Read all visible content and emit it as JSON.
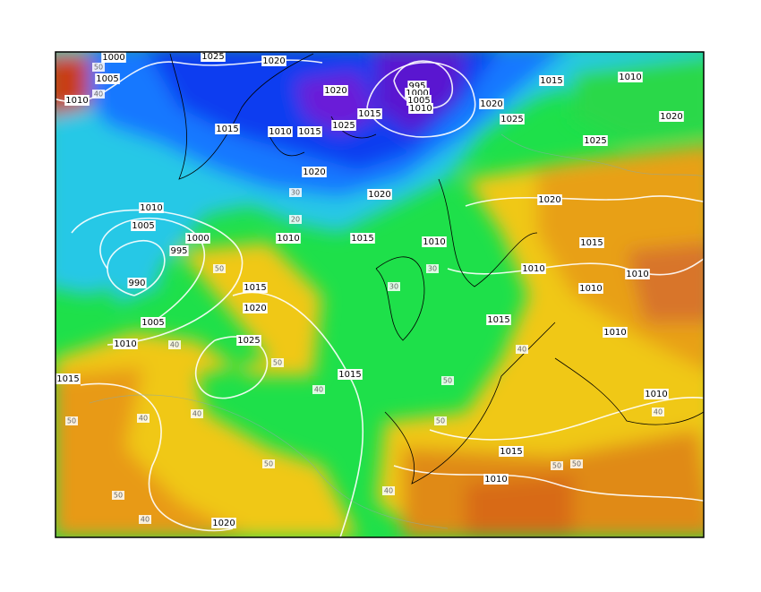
{
  "map": {
    "isobar_labels": [
      "1000",
      "1025",
      "1020",
      "1005",
      "1010",
      "1020",
      "995",
      "1000",
      "1005",
      "1010",
      "1015",
      "1025",
      "1015",
      "1010",
      "1015",
      "1020",
      "1015",
      "1010",
      "1020",
      "1025",
      "1025",
      "1020",
      "1020",
      "1020",
      "1010",
      "1005",
      "1010",
      "1015",
      "1010",
      "1000",
      "995",
      "1015",
      "1010",
      "1010",
      "1010",
      "990",
      "1015",
      "1020",
      "1005",
      "1015",
      "1010",
      "1010",
      "1025",
      "1015",
      "1015",
      "1010",
      "1015",
      "1010",
      "1020"
    ],
    "thickness_labels": [
      "50",
      "40",
      "50",
      "20",
      "30",
      "50",
      "40",
      "50",
      "40",
      "50",
      "30",
      "40",
      "50",
      "40",
      "50",
      "40",
      "30",
      "50",
      "40",
      "50",
      "40",
      "50",
      "40"
    ]
  }
}
